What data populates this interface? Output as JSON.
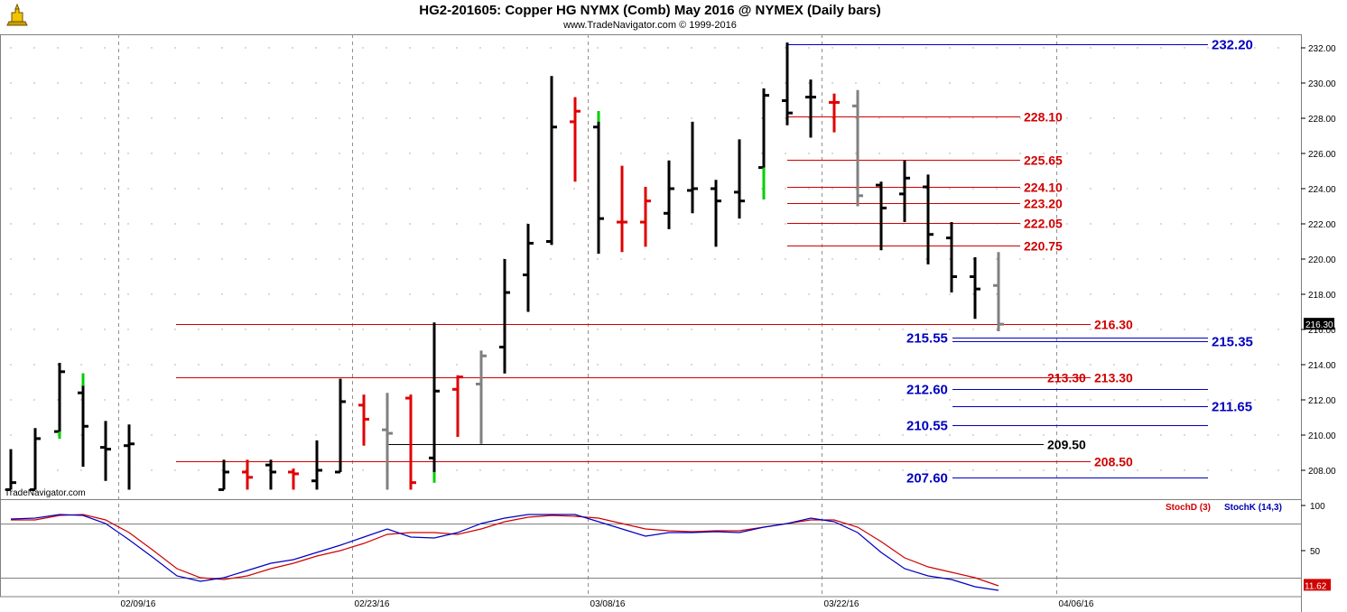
{
  "header": {
    "title": "HG2-201605:  Copper HG NYMX (Comb) May 2016 @ NYMEX  (Daily bars)",
    "subtitle": "www.TradeNavigator.com © 1999-2016",
    "watermark": "TradeNavigator.com"
  },
  "colors": {
    "up_bar": "#000000",
    "down_bar": "#e00000",
    "neutral_bar": "#808080",
    "signal_bar": "#00d000",
    "red_line": "#d00000",
    "blue_line": "#0000c0",
    "black_line": "#000000",
    "stoch_d": "#d00000",
    "stoch_k": "#0000c0"
  },
  "chart_data": [
    {
      "type": "bar",
      "subtype": "ohlc",
      "ylim": [
        206.9,
        233.0
      ],
      "y_ticks": [
        "232.00",
        "230.00",
        "228.00",
        "226.00",
        "224.00",
        "222.00",
        "220.00",
        "218.00",
        "216.00",
        "214.00",
        "212.00",
        "210.00",
        "208.00"
      ],
      "x_ticks": [
        "02/09/16",
        "02/23/16",
        "03/08/16",
        "03/22/16",
        "04/06/16"
      ],
      "last_price_label": "216.30",
      "bars": [
        {
          "x": 12,
          "o": 206.9,
          "h": 209.2,
          "l": 206.9,
          "c": 207.3,
          "color": "up_bar"
        },
        {
          "x": 39,
          "o": 206.9,
          "h": 210.4,
          "l": 206.9,
          "c": 209.8,
          "color": "up_bar"
        },
        {
          "x": 66,
          "o": 210.2,
          "h": 214.1,
          "l": 209.8,
          "c": 213.6,
          "color": "up_bar"
        },
        {
          "x": 92,
          "o": 212.4,
          "h": 213.5,
          "l": 208.2,
          "c": 210.5,
          "color": "up_bar"
        },
        {
          "x": 117,
          "o": 209.3,
          "h": 210.8,
          "l": 207.4,
          "c": 209.2,
          "color": "up_bar"
        },
        {
          "x": 143,
          "o": 209.4,
          "h": 210.6,
          "l": 206.9,
          "c": 209.5,
          "color": "up_bar"
        },
        {
          "x": 248,
          "o": 206.9,
          "h": 208.6,
          "l": 206.9,
          "c": 207.9,
          "color": "up_bar"
        },
        {
          "x": 274,
          "o": 207.9,
          "h": 208.6,
          "l": 206.9,
          "c": 207.6,
          "color": "down_bar"
        },
        {
          "x": 300,
          "o": 208.3,
          "h": 208.6,
          "l": 206.9,
          "c": 207.9,
          "color": "up_bar"
        },
        {
          "x": 325,
          "o": 207.9,
          "h": 208.1,
          "l": 206.9,
          "c": 207.8,
          "color": "down_bar"
        },
        {
          "x": 351,
          "o": 207.4,
          "h": 209.7,
          "l": 206.9,
          "c": 208.0,
          "color": "up_bar"
        },
        {
          "x": 377,
          "o": 207.9,
          "h": 213.2,
          "l": 207.9,
          "c": 211.9,
          "color": "up_bar"
        },
        {
          "x": 403,
          "o": 211.7,
          "h": 212.3,
          "l": 209.4,
          "c": 210.9,
          "color": "down_bar"
        },
        {
          "x": 429,
          "o": 210.3,
          "h": 212.4,
          "l": 206.9,
          "c": 210.1,
          "color": "neutral_bar"
        },
        {
          "x": 455,
          "o": 212.1,
          "h": 212.3,
          "l": 206.9,
          "c": 207.3,
          "color": "down_bar"
        },
        {
          "x": 481,
          "o": 208.7,
          "h": 216.4,
          "l": 207.3,
          "c": 212.5,
          "color": "up_bar"
        },
        {
          "x": 507,
          "o": 212.6,
          "h": 213.4,
          "l": 209.9,
          "c": 213.3,
          "color": "down_bar"
        },
        {
          "x": 533,
          "o": 212.9,
          "h": 214.8,
          "l": 209.5,
          "c": 214.5,
          "color": "neutral_bar"
        },
        {
          "x": 559,
          "o": 215.0,
          "h": 220.0,
          "l": 213.5,
          "c": 218.1,
          "color": "up_bar"
        },
        {
          "x": 585,
          "o": 219.1,
          "h": 222.0,
          "l": 217.0,
          "c": 220.9,
          "color": "up_bar"
        },
        {
          "x": 611,
          "o": 221.0,
          "h": 230.4,
          "l": 220.8,
          "c": 227.5,
          "color": "up_bar"
        },
        {
          "x": 637,
          "o": 227.8,
          "h": 229.2,
          "l": 224.4,
          "c": 228.4,
          "color": "down_bar"
        },
        {
          "x": 663,
          "o": 227.5,
          "h": 228.4,
          "l": 220.3,
          "c": 222.3,
          "color": "up_bar"
        },
        {
          "x": 689,
          "o": 222.1,
          "h": 225.3,
          "l": 220.4,
          "c": 222.1,
          "color": "down_bar"
        },
        {
          "x": 715,
          "o": 222.1,
          "h": 224.1,
          "l": 220.7,
          "c": 223.3,
          "color": "down_bar"
        },
        {
          "x": 741,
          "o": 222.6,
          "h": 225.6,
          "l": 221.7,
          "c": 224.0,
          "color": "up_bar"
        },
        {
          "x": 767,
          "o": 223.9,
          "h": 227.8,
          "l": 222.6,
          "c": 224.0,
          "color": "up_bar"
        },
        {
          "x": 793,
          "o": 224.0,
          "h": 224.5,
          "l": 220.7,
          "c": 223.3,
          "color": "up_bar"
        },
        {
          "x": 819,
          "o": 223.8,
          "h": 226.8,
          "l": 222.3,
          "c": 223.3,
          "color": "up_bar"
        },
        {
          "x": 846,
          "o": 225.2,
          "h": 229.7,
          "l": 223.4,
          "c": 229.3,
          "color": "up_bar"
        },
        {
          "x": 872,
          "o": 229.0,
          "h": 232.3,
          "l": 227.6,
          "c": 228.3,
          "color": "up_bar"
        },
        {
          "x": 898,
          "o": 229.2,
          "h": 230.2,
          "l": 226.9,
          "c": 229.2,
          "color": "up_bar"
        },
        {
          "x": 924,
          "o": 228.9,
          "h": 229.4,
          "l": 227.2,
          "c": 228.9,
          "color": "down_bar"
        },
        {
          "x": 950,
          "o": 228.7,
          "h": 229.6,
          "l": 223.0,
          "c": 223.6,
          "color": "neutral_bar"
        },
        {
          "x": 976,
          "o": 224.2,
          "h": 224.4,
          "l": 220.5,
          "c": 222.9,
          "color": "up_bar"
        },
        {
          "x": 1002,
          "o": 223.7,
          "h": 225.6,
          "l": 222.1,
          "c": 224.6,
          "color": "up_bar"
        },
        {
          "x": 1028,
          "o": 224.1,
          "h": 224.8,
          "l": 219.7,
          "c": 221.4,
          "color": "up_bar"
        },
        {
          "x": 1054,
          "o": 221.2,
          "h": 222.1,
          "l": 218.1,
          "c": 219.0,
          "color": "up_bar"
        },
        {
          "x": 1080,
          "o": 219.0,
          "h": 220.1,
          "l": 216.6,
          "c": 218.3,
          "color": "up_bar"
        },
        {
          "x": 1106,
          "o": 218.5,
          "h": 220.4,
          "l": 215.9,
          "c": 216.3,
          "color": "neutral_bar"
        }
      ],
      "signal_bars": [
        {
          "x": 66,
          "from": 210.2,
          "to": 209.8
        },
        {
          "x": 92,
          "from": 213.5,
          "to": 212.8
        },
        {
          "x": 481,
          "from": 207.9,
          "to": 207.3
        },
        {
          "x": 663,
          "from": 228.4,
          "to": 227.8
        },
        {
          "x": 846,
          "from": 225.2,
          "to": 223.4
        }
      ],
      "levels": [
        {
          "value": 232.2,
          "label": "232.20",
          "color": "blue_line",
          "x_from": 872,
          "x_to": 1338,
          "label_x": 1342
        },
        {
          "value": 228.1,
          "label": "228.10",
          "color": "red_line",
          "x_from": 872,
          "x_to": 1130,
          "label_x": 1134
        },
        {
          "value": 225.65,
          "label": "225.65",
          "color": "red_line",
          "x_from": 872,
          "x_to": 1130,
          "label_x": 1134
        },
        {
          "value": 224.1,
          "label": "224.10",
          "color": "red_line",
          "x_from": 872,
          "x_to": 1130,
          "label_x": 1134
        },
        {
          "value": 223.2,
          "label": "223.20",
          "color": "red_line",
          "x_from": 872,
          "x_to": 1130,
          "label_x": 1134
        },
        {
          "value": 222.05,
          "label": "222.05",
          "color": "red_line",
          "x_from": 872,
          "x_to": 1130,
          "label_x": 1134
        },
        {
          "value": 220.75,
          "label": "220.75",
          "color": "red_line",
          "x_from": 872,
          "x_to": 1130,
          "label_x": 1134
        },
        {
          "value": 216.3,
          "label": "216.30",
          "color": "red_line",
          "x_from": 195,
          "x_to": 1208,
          "label_x": 1212
        },
        {
          "value": 215.55,
          "label": "215.55",
          "color": "blue_line",
          "x_from": 1055,
          "x_to": 1338,
          "label_x": 1004
        },
        {
          "value": 215.35,
          "label": "215.35",
          "color": "blue_line",
          "x_from": 1055,
          "x_to": 1338,
          "label_x": 1342
        },
        {
          "value": 213.3,
          "label": "213.30",
          "color": "red_line",
          "x_from": 195,
          "x_to": 1208,
          "label_x": 1212
        },
        {
          "value": 213.3,
          "label": "213.30",
          "color": "red_line",
          "x_from": 1160,
          "x_to": 1160,
          "label_x": 1160
        },
        {
          "value": 212.6,
          "label": "212.60",
          "color": "blue_line",
          "x_from": 1055,
          "x_to": 1338,
          "label_x": 1004
        },
        {
          "value": 211.65,
          "label": "211.65",
          "color": "blue_line",
          "x_from": 1055,
          "x_to": 1338,
          "label_x": 1342
        },
        {
          "value": 210.55,
          "label": "210.55",
          "color": "blue_line",
          "x_from": 1055,
          "x_to": 1338,
          "label_x": 1004
        },
        {
          "value": 209.5,
          "label": "209.50",
          "color": "black_line",
          "x_from": 429,
          "x_to": 1156,
          "label_x": 1160
        },
        {
          "value": 208.5,
          "label": "208.50",
          "color": "red_line",
          "x_from": 195,
          "x_to": 1208,
          "label_x": 1212
        },
        {
          "value": 207.6,
          "label": "207.60",
          "color": "blue_line",
          "x_from": 1055,
          "x_to": 1338,
          "label_x": 1004
        }
      ]
    },
    {
      "type": "line",
      "subtype": "stochastic",
      "ylim": [
        0,
        100
      ],
      "y_ticks": [
        "100",
        "50"
      ],
      "series_d_name": "StochD (3)",
      "series_k_name": "StochK (14,3)",
      "last_value_label": "11.62",
      "series": [
        {
          "name": "StochD (3)",
          "color": "stoch_d",
          "points": [
            [
              12,
              84
            ],
            [
              39,
              84
            ],
            [
              66,
              89
            ],
            [
              92,
              90
            ],
            [
              117,
              84
            ],
            [
              143,
              70
            ],
            [
              170,
              50
            ],
            [
              196,
              30
            ],
            [
              222,
              20
            ],
            [
              248,
              18
            ],
            [
              274,
              22
            ],
            [
              300,
              30
            ],
            [
              325,
              36
            ],
            [
              351,
              44
            ],
            [
              377,
              50
            ],
            [
              403,
              58
            ],
            [
              429,
              68
            ],
            [
              455,
              70
            ],
            [
              481,
              70
            ],
            [
              507,
              68
            ],
            [
              533,
              74
            ],
            [
              559,
              82
            ],
            [
              585,
              87
            ],
            [
              611,
              89
            ],
            [
              637,
              88
            ],
            [
              663,
              86
            ],
            [
              689,
              80
            ],
            [
              715,
              74
            ],
            [
              741,
              72
            ],
            [
              767,
              71
            ],
            [
              793,
              72
            ],
            [
              819,
              72
            ],
            [
              846,
              76
            ],
            [
              872,
              80
            ],
            [
              898,
              84
            ],
            [
              924,
              84
            ],
            [
              950,
              76
            ],
            [
              976,
              60
            ],
            [
              1002,
              42
            ],
            [
              1028,
              32
            ],
            [
              1054,
              26
            ],
            [
              1080,
              20
            ],
            [
              1106,
              11
            ]
          ]
        },
        {
          "name": "StochK (14,3)",
          "color": "stoch_k",
          "points": [
            [
              12,
              85
            ],
            [
              39,
              86
            ],
            [
              66,
              90
            ],
            [
              92,
              89
            ],
            [
              117,
              80
            ],
            [
              143,
              62
            ],
            [
              170,
              42
            ],
            [
              196,
              22
            ],
            [
              222,
              16
            ],
            [
              248,
              20
            ],
            [
              274,
              28
            ],
            [
              300,
              36
            ],
            [
              325,
              40
            ],
            [
              351,
              48
            ],
            [
              377,
              56
            ],
            [
              403,
              65
            ],
            [
              429,
              74
            ],
            [
              455,
              65
            ],
            [
              481,
              64
            ],
            [
              507,
              70
            ],
            [
              533,
              80
            ],
            [
              559,
              86
            ],
            [
              585,
              90
            ],
            [
              611,
              90
            ],
            [
              637,
              90
            ],
            [
              663,
              82
            ],
            [
              689,
              74
            ],
            [
              715,
              66
            ],
            [
              741,
              70
            ],
            [
              767,
              70
            ],
            [
              793,
              71
            ],
            [
              819,
              70
            ],
            [
              846,
              76
            ],
            [
              872,
              80
            ],
            [
              898,
              86
            ],
            [
              924,
              82
            ],
            [
              950,
              70
            ],
            [
              976,
              48
            ],
            [
              1002,
              30
            ],
            [
              1028,
              22
            ],
            [
              1054,
              18
            ],
            [
              1080,
              10
            ],
            [
              1106,
              6
            ]
          ]
        }
      ]
    }
  ]
}
